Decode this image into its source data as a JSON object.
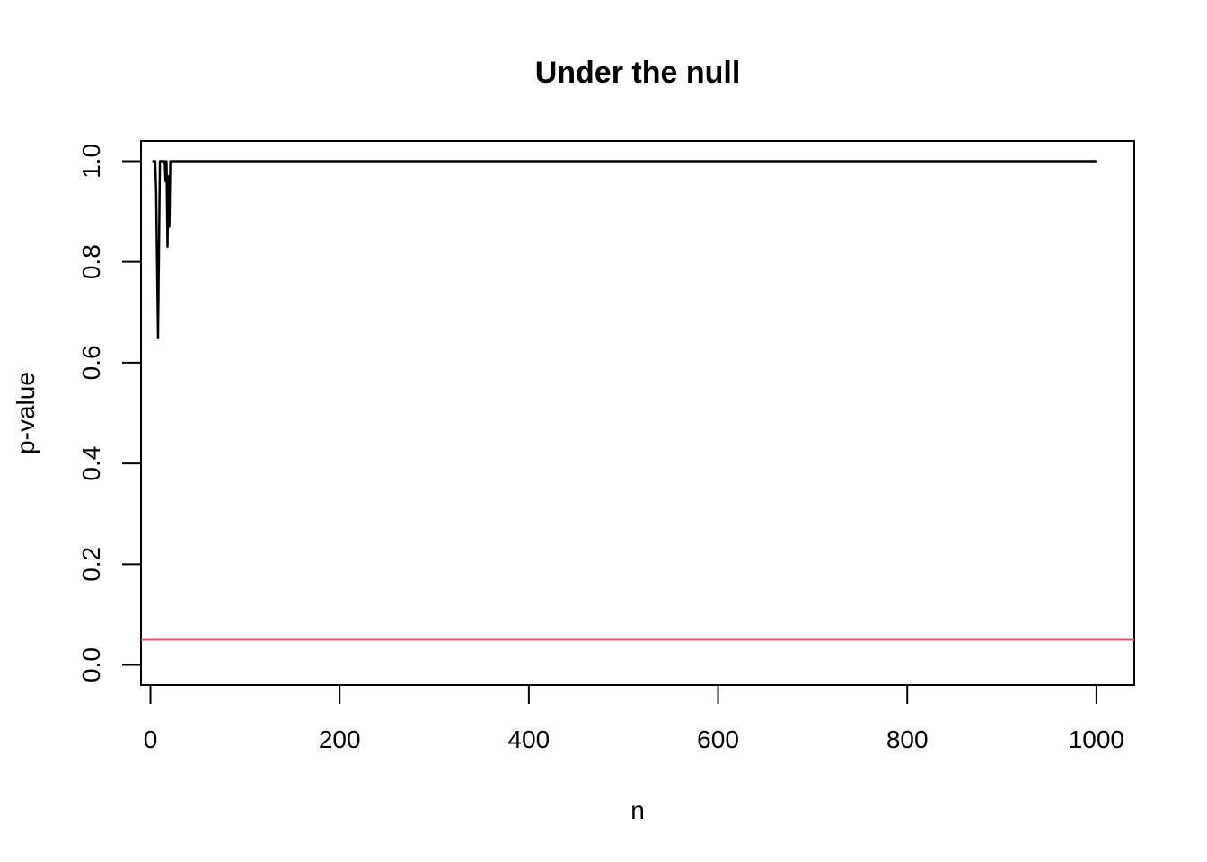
{
  "chart_data": {
    "type": "line",
    "title": "Under the null",
    "xlabel": "n",
    "ylabel": "p-value",
    "xlim": [
      -10,
      1040
    ],
    "ylim": [
      -0.04,
      1.04
    ],
    "x_ticks": [
      0,
      200,
      400,
      600,
      800,
      1000
    ],
    "y_ticks": [
      0.0,
      0.2,
      0.4,
      0.6,
      0.8,
      1.0
    ],
    "x_tick_labels": [
      "0",
      "200",
      "400",
      "600",
      "800",
      "1000"
    ],
    "y_tick_labels": [
      "0.0",
      "0.2",
      "0.4",
      "0.6",
      "0.8",
      "1.0"
    ],
    "grid": false,
    "series": [
      {
        "color": "#000000",
        "x": [
          2,
          3,
          4,
          5,
          6,
          7,
          8,
          9,
          10,
          11,
          12,
          13,
          14,
          15,
          16,
          17,
          18,
          19,
          20,
          21,
          22,
          23,
          24,
          25,
          1000
        ],
        "y": [
          1.0,
          1.0,
          1.0,
          1.0,
          0.94,
          0.79,
          0.65,
          0.82,
          1.0,
          1.0,
          1.0,
          1.0,
          1.0,
          1.0,
          0.96,
          1.0,
          0.83,
          0.97,
          0.87,
          1.0,
          1.0,
          1.0,
          1.0,
          1.0,
          1.0
        ]
      }
    ],
    "reference_lines": [
      {
        "orientation": "horizontal",
        "value": 0.05,
        "color": "#DF536B"
      }
    ]
  }
}
